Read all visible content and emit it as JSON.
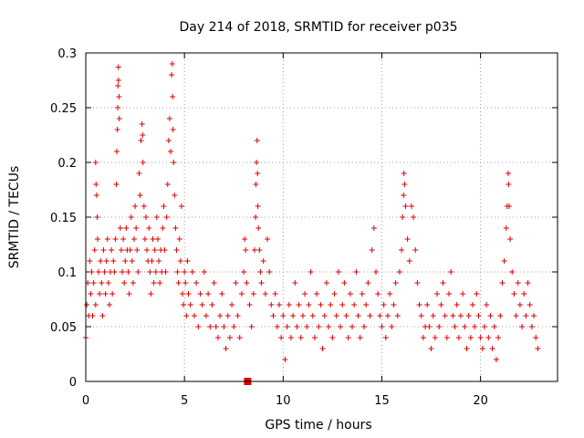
{
  "chart_data": {
    "type": "scatter",
    "title": "Day 214 of 2018, SRMTID for receiver p035",
    "xlabel": "GPS time / hours",
    "ylabel": "SRMTID / TECUs",
    "xlim": [
      0,
      23.9
    ],
    "ylim": [
      0,
      0.3
    ],
    "x_ticks": [
      0,
      5,
      10,
      15,
      20
    ],
    "y_ticks": [
      0,
      0.05,
      0.1,
      0.15,
      0.2,
      0.25,
      0.3
    ],
    "x_tick_labels": [
      "0",
      "5",
      "10",
      "15",
      "20"
    ],
    "y_tick_labels": [
      "0",
      "0.05",
      "0.1",
      "0.15",
      "0.2",
      "0.25",
      "0.3"
    ],
    "grid": true,
    "marker": "plus",
    "color": "#e00000",
    "gap_marker": {
      "x": 8.2,
      "y": 0.0
    },
    "points": [
      [
        0.0,
        0.04
      ],
      [
        0.05,
        0.07
      ],
      [
        0.1,
        0.09
      ],
      [
        0.15,
        0.06
      ],
      [
        0.2,
        0.11
      ],
      [
        0.25,
        0.08
      ],
      [
        0.3,
        0.1
      ],
      [
        0.35,
        0.06
      ],
      [
        0.4,
        0.09
      ],
      [
        0.45,
        0.12
      ],
      [
        0.5,
        0.07
      ],
      [
        0.5,
        0.2
      ],
      [
        0.52,
        0.18
      ],
      [
        0.55,
        0.17
      ],
      [
        0.58,
        0.15
      ],
      [
        0.6,
        0.13
      ],
      [
        0.65,
        0.1
      ],
      [
        0.7,
        0.08
      ],
      [
        0.75,
        0.11
      ],
      [
        0.8,
        0.09
      ],
      [
        0.85,
        0.06
      ],
      [
        0.9,
        0.12
      ],
      [
        0.95,
        0.1
      ],
      [
        1.0,
        0.08
      ],
      [
        1.05,
        0.11
      ],
      [
        1.1,
        0.13
      ],
      [
        1.15,
        0.09
      ],
      [
        1.2,
        0.07
      ],
      [
        1.25,
        0.1
      ],
      [
        1.3,
        0.12
      ],
      [
        1.35,
        0.08
      ],
      [
        1.4,
        0.11
      ],
      [
        1.45,
        0.1
      ],
      [
        1.5,
        0.13
      ],
      [
        1.55,
        0.18
      ],
      [
        1.57,
        0.21
      ],
      [
        1.6,
        0.23
      ],
      [
        1.62,
        0.25
      ],
      [
        1.63,
        0.27
      ],
      [
        1.65,
        0.287
      ],
      [
        1.66,
        0.275
      ],
      [
        1.68,
        0.26
      ],
      [
        1.7,
        0.24
      ],
      [
        1.75,
        0.14
      ],
      [
        1.8,
        0.12
      ],
      [
        1.85,
        0.1
      ],
      [
        1.9,
        0.13
      ],
      [
        1.95,
        0.09
      ],
      [
        2.0,
        0.11
      ],
      [
        2.05,
        0.14
      ],
      [
        2.1,
        0.12
      ],
      [
        2.15,
        0.1
      ],
      [
        2.2,
        0.08
      ],
      [
        2.25,
        0.12
      ],
      [
        2.3,
        0.15
      ],
      [
        2.35,
        0.11
      ],
      [
        2.4,
        0.09
      ],
      [
        2.45,
        0.13
      ],
      [
        2.5,
        0.16
      ],
      [
        2.55,
        0.14
      ],
      [
        2.6,
        0.12
      ],
      [
        2.65,
        0.1
      ],
      [
        2.7,
        0.19
      ],
      [
        2.75,
        0.17
      ],
      [
        2.8,
        0.22
      ],
      [
        2.85,
        0.235
      ],
      [
        2.88,
        0.225
      ],
      [
        2.9,
        0.2
      ],
      [
        2.95,
        0.16
      ],
      [
        3.0,
        0.13
      ],
      [
        3.05,
        0.15
      ],
      [
        3.1,
        0.12
      ],
      [
        3.15,
        0.11
      ],
      [
        3.2,
        0.14
      ],
      [
        3.25,
        0.1
      ],
      [
        3.3,
        0.08
      ],
      [
        3.35,
        0.11
      ],
      [
        3.4,
        0.13
      ],
      [
        3.45,
        0.09
      ],
      [
        3.5,
        0.12
      ],
      [
        3.55,
        0.1
      ],
      [
        3.6,
        0.15
      ],
      [
        3.65,
        0.13
      ],
      [
        3.7,
        0.11
      ],
      [
        3.75,
        0.09
      ],
      [
        3.8,
        0.12
      ],
      [
        3.85,
        0.1
      ],
      [
        3.9,
        0.14
      ],
      [
        3.95,
        0.16
      ],
      [
        4.0,
        0.12
      ],
      [
        4.05,
        0.1
      ],
      [
        4.1,
        0.15
      ],
      [
        4.15,
        0.18
      ],
      [
        4.2,
        0.22
      ],
      [
        4.25,
        0.24
      ],
      [
        4.3,
        0.21
      ],
      [
        4.35,
        0.28
      ],
      [
        4.38,
        0.29
      ],
      [
        4.4,
        0.26
      ],
      [
        4.42,
        0.23
      ],
      [
        4.45,
        0.2
      ],
      [
        4.5,
        0.17
      ],
      [
        4.55,
        0.14
      ],
      [
        4.6,
        0.12
      ],
      [
        4.65,
        0.1
      ],
      [
        4.7,
        0.09
      ],
      [
        4.75,
        0.13
      ],
      [
        4.8,
        0.11
      ],
      [
        4.85,
        0.16
      ],
      [
        4.9,
        0.08
      ],
      [
        4.95,
        0.07
      ],
      [
        5.0,
        0.1
      ],
      [
        5.05,
        0.09
      ],
      [
        5.1,
        0.06
      ],
      [
        5.15,
        0.11
      ],
      [
        5.2,
        0.08
      ],
      [
        5.3,
        0.07
      ],
      [
        5.4,
        0.1
      ],
      [
        5.5,
        0.06
      ],
      [
        5.6,
        0.09
      ],
      [
        5.7,
        0.05
      ],
      [
        5.8,
        0.08
      ],
      [
        5.9,
        0.07
      ],
      [
        6.0,
        0.1
      ],
      [
        6.1,
        0.06
      ],
      [
        6.2,
        0.08
      ],
      [
        6.3,
        0.05
      ],
      [
        6.4,
        0.07
      ],
      [
        6.5,
        0.09
      ],
      [
        6.6,
        0.05
      ],
      [
        6.7,
        0.04
      ],
      [
        6.8,
        0.06
      ],
      [
        6.9,
        0.08
      ],
      [
        7.0,
        0.05
      ],
      [
        7.1,
        0.03
      ],
      [
        7.2,
        0.06
      ],
      [
        7.3,
        0.04
      ],
      [
        7.4,
        0.07
      ],
      [
        7.5,
        0.05
      ],
      [
        7.6,
        0.09
      ],
      [
        7.7,
        0.06
      ],
      [
        7.8,
        0.04
      ],
      [
        7.9,
        0.08
      ],
      [
        8.0,
        0.1
      ],
      [
        8.05,
        0.13
      ],
      [
        8.1,
        0.12
      ],
      [
        8.15,
        0.09
      ],
      [
        8.3,
        0.07
      ],
      [
        8.4,
        0.05
      ],
      [
        8.5,
        0.08
      ],
      [
        8.55,
        0.12
      ],
      [
        8.6,
        0.15
      ],
      [
        8.62,
        0.18
      ],
      [
        8.65,
        0.2
      ],
      [
        8.68,
        0.22
      ],
      [
        8.7,
        0.19
      ],
      [
        8.72,
        0.16
      ],
      [
        8.75,
        0.14
      ],
      [
        8.8,
        0.12
      ],
      [
        8.85,
        0.1
      ],
      [
        8.9,
        0.09
      ],
      [
        9.0,
        0.11
      ],
      [
        9.1,
        0.08
      ],
      [
        9.2,
        0.13
      ],
      [
        9.3,
        0.1
      ],
      [
        9.4,
        0.07
      ],
      [
        9.5,
        0.06
      ],
      [
        9.6,
        0.08
      ],
      [
        9.7,
        0.05
      ],
      [
        9.8,
        0.07
      ],
      [
        9.9,
        0.04
      ],
      [
        10.0,
        0.06
      ],
      [
        10.1,
        0.02
      ],
      [
        10.2,
        0.05
      ],
      [
        10.3,
        0.07
      ],
      [
        10.4,
        0.04
      ],
      [
        10.5,
        0.06
      ],
      [
        10.6,
        0.09
      ],
      [
        10.7,
        0.05
      ],
      [
        10.8,
        0.07
      ],
      [
        10.9,
        0.04
      ],
      [
        11.0,
        0.06
      ],
      [
        11.1,
        0.08
      ],
      [
        11.2,
        0.05
      ],
      [
        11.3,
        0.07
      ],
      [
        11.4,
        0.1
      ],
      [
        11.5,
        0.06
      ],
      [
        11.6,
        0.04
      ],
      [
        11.7,
        0.08
      ],
      [
        11.8,
        0.05
      ],
      [
        11.9,
        0.07
      ],
      [
        12.0,
        0.03
      ],
      [
        12.1,
        0.06
      ],
      [
        12.2,
        0.09
      ],
      [
        12.3,
        0.05
      ],
      [
        12.4,
        0.07
      ],
      [
        12.5,
        0.04
      ],
      [
        12.6,
        0.08
      ],
      [
        12.7,
        0.06
      ],
      [
        12.8,
        0.1
      ],
      [
        12.9,
        0.05
      ],
      [
        13.0,
        0.07
      ],
      [
        13.1,
        0.09
      ],
      [
        13.2,
        0.06
      ],
      [
        13.3,
        0.04
      ],
      [
        13.4,
        0.08
      ],
      [
        13.5,
        0.05
      ],
      [
        13.6,
        0.07
      ],
      [
        13.7,
        0.1
      ],
      [
        13.8,
        0.06
      ],
      [
        13.9,
        0.04
      ],
      [
        14.0,
        0.08
      ],
      [
        14.1,
        0.05
      ],
      [
        14.2,
        0.07
      ],
      [
        14.3,
        0.09
      ],
      [
        14.4,
        0.06
      ],
      [
        14.5,
        0.12
      ],
      [
        14.6,
        0.14
      ],
      [
        14.7,
        0.1
      ],
      [
        14.8,
        0.08
      ],
      [
        14.9,
        0.06
      ],
      [
        15.0,
        0.05
      ],
      [
        15.1,
        0.07
      ],
      [
        15.2,
        0.04
      ],
      [
        15.3,
        0.06
      ],
      [
        15.4,
        0.08
      ],
      [
        15.5,
        0.05
      ],
      [
        15.6,
        0.07
      ],
      [
        15.7,
        0.09
      ],
      [
        15.8,
        0.06
      ],
      [
        15.9,
        0.1
      ],
      [
        16.0,
        0.12
      ],
      [
        16.05,
        0.15
      ],
      [
        16.1,
        0.17
      ],
      [
        16.12,
        0.19
      ],
      [
        16.15,
        0.18
      ],
      [
        16.2,
        0.16
      ],
      [
        16.3,
        0.13
      ],
      [
        16.4,
        0.11
      ],
      [
        16.5,
        0.16
      ],
      [
        16.6,
        0.15
      ],
      [
        16.7,
        0.12
      ],
      [
        16.8,
        0.09
      ],
      [
        16.9,
        0.07
      ],
      [
        17.0,
        0.06
      ],
      [
        17.1,
        0.04
      ],
      [
        17.2,
        0.05
      ],
      [
        17.3,
        0.07
      ],
      [
        17.4,
        0.05
      ],
      [
        17.5,
        0.03
      ],
      [
        17.6,
        0.06
      ],
      [
        17.7,
        0.04
      ],
      [
        17.8,
        0.08
      ],
      [
        17.9,
        0.05
      ],
      [
        18.0,
        0.07
      ],
      [
        18.1,
        0.09
      ],
      [
        18.2,
        0.06
      ],
      [
        18.3,
        0.04
      ],
      [
        18.4,
        0.08
      ],
      [
        18.5,
        0.1
      ],
      [
        18.6,
        0.06
      ],
      [
        18.7,
        0.05
      ],
      [
        18.8,
        0.07
      ],
      [
        18.9,
        0.04
      ],
      [
        19.0,
        0.06
      ],
      [
        19.1,
        0.08
      ],
      [
        19.2,
        0.05
      ],
      [
        19.3,
        0.03
      ],
      [
        19.4,
        0.06
      ],
      [
        19.5,
        0.04
      ],
      [
        19.6,
        0.07
      ],
      [
        19.7,
        0.05
      ],
      [
        19.8,
        0.08
      ],
      [
        19.9,
        0.06
      ],
      [
        20.0,
        0.04
      ],
      [
        20.1,
        0.03
      ],
      [
        20.2,
        0.05
      ],
      [
        20.3,
        0.07
      ],
      [
        20.4,
        0.04
      ],
      [
        20.5,
        0.06
      ],
      [
        20.6,
        0.03
      ],
      [
        20.7,
        0.05
      ],
      [
        20.8,
        0.02
      ],
      [
        20.9,
        0.04
      ],
      [
        21.0,
        0.06
      ],
      [
        21.1,
        0.09
      ],
      [
        21.2,
        0.11
      ],
      [
        21.3,
        0.14
      ],
      [
        21.35,
        0.16
      ],
      [
        21.4,
        0.19
      ],
      [
        21.42,
        0.18
      ],
      [
        21.45,
        0.16
      ],
      [
        21.5,
        0.13
      ],
      [
        21.6,
        0.1
      ],
      [
        21.7,
        0.08
      ],
      [
        21.8,
        0.06
      ],
      [
        21.9,
        0.09
      ],
      [
        22.0,
        0.07
      ],
      [
        22.1,
        0.05
      ],
      [
        22.2,
        0.08
      ],
      [
        22.3,
        0.06
      ],
      [
        22.4,
        0.09
      ],
      [
        22.5,
        0.07
      ],
      [
        22.6,
        0.05
      ],
      [
        22.7,
        0.06
      ],
      [
        22.8,
        0.04
      ],
      [
        22.9,
        0.03
      ]
    ]
  }
}
